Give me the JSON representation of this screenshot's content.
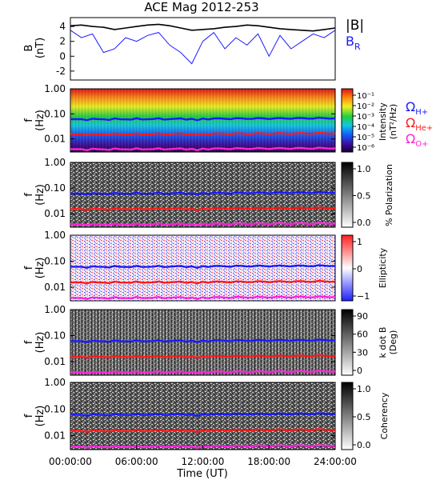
{
  "title": "ACE Mag 2012-253",
  "colors": {
    "field_magnitude": "#000000",
    "field_radial": "#1a1aff",
    "cyclotron_h": "#1a1aff",
    "cyclotron_he": "#ff1a1a",
    "cyclotron_o": "#ff22dd"
  },
  "legend": {
    "mag": "|B|",
    "br_main": "B",
    "br_sub": "R",
    "h_main": "Ω",
    "h_sub": "H+",
    "he_main": "Ω",
    "he_sub": "He+",
    "o_main": "Ω",
    "o_sub": "O+"
  },
  "x_axis": {
    "label": "Time (UT)",
    "ticks": [
      "00:00:00",
      "06:00:00",
      "12:00:00",
      "18:00:00",
      "24:00:00"
    ]
  },
  "chart_data": [
    {
      "type": "line",
      "panel": "magnetic-field",
      "ylabel_main": "B",
      "ylabel_unit": "(nT)",
      "ylim": [
        -3.2,
        5.2
      ],
      "yticks": [
        "4",
        "2",
        "0",
        "-2"
      ],
      "x_hours": [
        0,
        1,
        2,
        3,
        4,
        5,
        6,
        7,
        8,
        9,
        10,
        11,
        12,
        13,
        14,
        15,
        16,
        17,
        18,
        19,
        20,
        21,
        22,
        23,
        24
      ],
      "series": [
        {
          "name": "|B|",
          "values": [
            4.1,
            4.2,
            4.0,
            3.9,
            3.6,
            3.8,
            4.0,
            4.2,
            4.3,
            4.1,
            3.8,
            3.5,
            3.6,
            3.7,
            3.9,
            4.0,
            4.2,
            4.1,
            3.9,
            3.7,
            3.6,
            3.5,
            3.4,
            3.6,
            3.8
          ]
        },
        {
          "name": "B_R",
          "values": [
            3.5,
            2.5,
            3.0,
            0.5,
            1.0,
            2.5,
            2.0,
            2.8,
            3.2,
            1.5,
            0.5,
            -1.0,
            2.0,
            3.2,
            1.0,
            2.5,
            1.5,
            3.0,
            0.0,
            2.8,
            1.0,
            2.0,
            3.0,
            2.5,
            3.5
          ]
        }
      ]
    },
    {
      "type": "heatmap",
      "panel": "intensity",
      "ylabel_main": "f",
      "ylabel_unit": "(Hz)",
      "y_scale": "log",
      "ylim": [
        0.003,
        1.0
      ],
      "yticks": [
        "1.00",
        "0.10",
        "0.01"
      ],
      "colorbar_label": "Intensity",
      "colorbar_unit": "(nT²/Hz)",
      "colorbar_ticks": [
        "10⁻¹",
        "10⁻²",
        "10⁻³",
        "10⁻⁴",
        "10⁻⁵",
        "10⁻⁶"
      ],
      "colorscale": "rainbow"
    },
    {
      "type": "heatmap",
      "panel": "polarization",
      "ylabel_main": "f",
      "ylabel_unit": "(Hz)",
      "y_scale": "log",
      "ylim": [
        0.003,
        1.0
      ],
      "yticks": [
        "1.00",
        "0.10",
        "0.01"
      ],
      "colorbar_label": "% Polarization",
      "colorbar_ticks": [
        "1.0",
        "0.5",
        "0.0"
      ],
      "colorscale": "gray"
    },
    {
      "type": "heatmap",
      "panel": "ellipticity",
      "ylabel_main": "f",
      "ylabel_unit": "(Hz)",
      "y_scale": "log",
      "ylim": [
        0.003,
        1.0
      ],
      "yticks": [
        "1.00",
        "0.10",
        "0.01"
      ],
      "colorbar_label": "Ellipticity",
      "colorbar_ticks": [
        "1",
        "0",
        "−1"
      ],
      "colorscale": "blue-white-red"
    },
    {
      "type": "heatmap",
      "panel": "wave-normal-angle",
      "ylabel_main": "f",
      "ylabel_unit": "(Hz)",
      "y_scale": "log",
      "ylim": [
        0.003,
        1.0
      ],
      "yticks": [
        "1.00",
        "0.10",
        "0.01"
      ],
      "colorbar_label": "k dot B",
      "colorbar_unit": "(Deg)",
      "colorbar_ticks": [
        "90",
        "60",
        "30",
        "0"
      ],
      "colorscale": "gray"
    },
    {
      "type": "heatmap",
      "panel": "coherency",
      "ylabel_main": "f",
      "ylabel_unit": "(Hz)",
      "y_scale": "log",
      "ylim": [
        0.003,
        1.0
      ],
      "yticks": [
        "1.00",
        "0.10",
        "0.01"
      ],
      "colorbar_label": "Coherency",
      "colorbar_ticks": [
        "1.0",
        "0.5",
        "0.0"
      ],
      "colorscale": "gray"
    }
  ],
  "cyclotron_freq_hz": {
    "H+": 0.06,
    "He+": 0.015,
    "O+": 0.0038
  }
}
